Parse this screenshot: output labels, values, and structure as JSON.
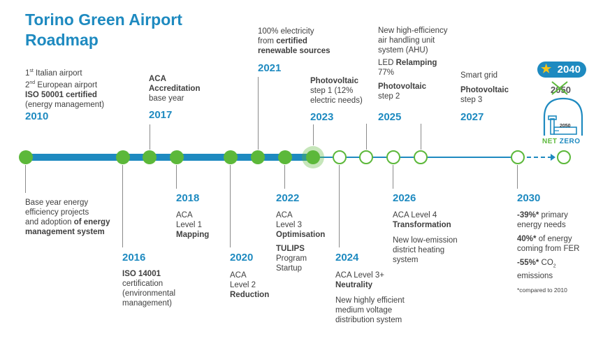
{
  "title": {
    "line1": "Torino Green Airport",
    "line2": "Roadmap"
  },
  "milestones": {
    "m2010": {
      "year": "2010",
      "l1_sup": "st",
      "l1_rest": " Italian airport",
      "l2_sup": "nd",
      "l2_rest": " European airport",
      "l3": "ISO 50001 certified",
      "l4": "(energy management)",
      "below1": "Base year energy",
      "below2": "efficiency projects",
      "below3a": "and adoption ",
      "below3b": "of energy",
      "below4": "management system"
    },
    "m2016": {
      "year": "2016",
      "l1": "ISO 14001",
      "l2": "certification",
      "l3": "(environmental",
      "l4": "management)"
    },
    "m2017": {
      "year": "2017",
      "l1": "ACA",
      "l2": "Accreditation",
      "l3": "base year"
    },
    "m2018": {
      "year": "2018",
      "l1": "ACA",
      "l2": "Level 1",
      "l3": "Mapping"
    },
    "m2020": {
      "year": "2020",
      "l1": "ACA",
      "l2": "Level 2",
      "l3": "Reduction"
    },
    "m2021": {
      "year": "2021",
      "l1": "100% electricity",
      "l2a": "from ",
      "l2b": "certified",
      "l3": "renewable sources"
    },
    "m2022": {
      "year": "2022",
      "l1": "ACA",
      "l2": "Level 3",
      "l3": "Optimisation",
      "l4": "TULIPS",
      "l5": "Program",
      "l6": "Startup"
    },
    "m2023": {
      "year": "2023",
      "l1": "Photovoltaic",
      "l2": "step 1 (12%",
      "l3": "electric needs)"
    },
    "m2024": {
      "year": "2024",
      "l1": "ACA Level 3+",
      "l2": "Neutrality",
      "l3": "New highly efficient",
      "l4": "medium voltage",
      "l5": "distribution system"
    },
    "m2025": {
      "year": "2025",
      "l1": "New high-efficiency",
      "l2": "air handling unit",
      "l3": "system (AHU)",
      "l4a": "LED ",
      "l4b": "Relamping",
      "l5": "77%",
      "l6": "Photovoltaic",
      "l7": "step 2"
    },
    "m2026": {
      "year": "2026",
      "l1": "ACA Level 4",
      "l2": "Transformation",
      "l3": "New low-emission",
      "l4": "district heating",
      "l5": "system"
    },
    "m2027": {
      "year": "2027",
      "l1": "Smart grid",
      "l2": "Photovoltaic",
      "l3": "step 3"
    },
    "m2030": {
      "year": "2030",
      "l1a": "-39%*",
      "l1b": " primary",
      "l2": "energy needs",
      "l3a": "40%*",
      "l3b": " of energy",
      "l4": "coming from FER",
      "l5a": "-55%*",
      "l5b": " CO",
      "l5c": "2",
      "l6": "emissions",
      "note": "*compared to 2010"
    }
  },
  "target": {
    "new_year": "2040",
    "old_year": "2050",
    "building_label": "2050",
    "net": "NET",
    "zero": "ZERO"
  },
  "colors": {
    "accent_blue": "#1e8ac0",
    "accent_green": "#5cb83a",
    "star": "#f6c317"
  },
  "icons": [
    "star-icon",
    "airport-dome-icon",
    "cross-out-mark"
  ]
}
